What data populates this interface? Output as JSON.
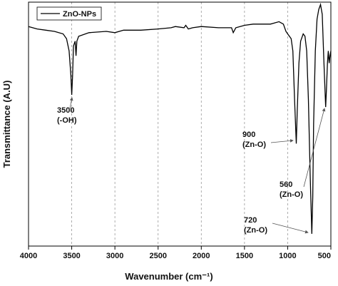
{
  "chart_data": {
    "type": "line",
    "xlabel": "Wavenumber (cm⁻¹)",
    "ylabel": "Transmittance (A.U)",
    "xlim": [
      4000,
      500
    ],
    "ylim": [
      0,
      100
    ],
    "xticks": [
      4000,
      3500,
      3000,
      2500,
      2000,
      1500,
      1000,
      500
    ],
    "grid": true,
    "legend": "upper left",
    "series": [
      {
        "name": "ZnO-NPs",
        "color": "#000000",
        "x": [
          4000,
          3900,
          3800,
          3700,
          3600,
          3560,
          3530,
          3510,
          3500,
          3490,
          3480,
          3460,
          3450,
          3440,
          3420,
          3300,
          3100,
          3000,
          2900,
          2700,
          2500,
          2350,
          2300,
          2200,
          2180,
          2150,
          2100,
          2000,
          1800,
          1650,
          1630,
          1600,
          1500,
          1400,
          1200,
          1100,
          1050,
          1020,
          1000,
          980,
          960,
          940,
          920,
          900,
          890,
          870,
          850,
          820,
          800,
          780,
          760,
          740,
          720,
          710,
          700,
          680,
          660,
          640,
          620,
          600,
          580,
          560,
          550,
          540,
          530,
          520,
          510,
          500
        ],
        "values": [
          90,
          89,
          88.5,
          88,
          87,
          85,
          80,
          70,
          62,
          70,
          82,
          84,
          78,
          84,
          86,
          87.5,
          88,
          87.5,
          88.5,
          88.5,
          89,
          89.5,
          90,
          89.5,
          90.5,
          89,
          89.5,
          90,
          89.5,
          89.5,
          87.5,
          89.5,
          90.5,
          91,
          91,
          92,
          91,
          88,
          87,
          86,
          85,
          80,
          60,
          42,
          55,
          75,
          84,
          87,
          86,
          80,
          60,
          30,
          5,
          20,
          50,
          80,
          93,
          97,
          99,
          95,
          75,
          57,
          65,
          75,
          80,
          75,
          78,
          80
        ]
      }
    ],
    "annotations": [
      {
        "lines": [
          "3500",
          "(-OH)"
        ]
      },
      {
        "lines": [
          "900",
          "(Zn-O)"
        ]
      },
      {
        "lines": [
          "560",
          "(Zn-O)"
        ]
      },
      {
        "lines": [
          "720",
          "(Zn-O)"
        ]
      }
    ]
  }
}
